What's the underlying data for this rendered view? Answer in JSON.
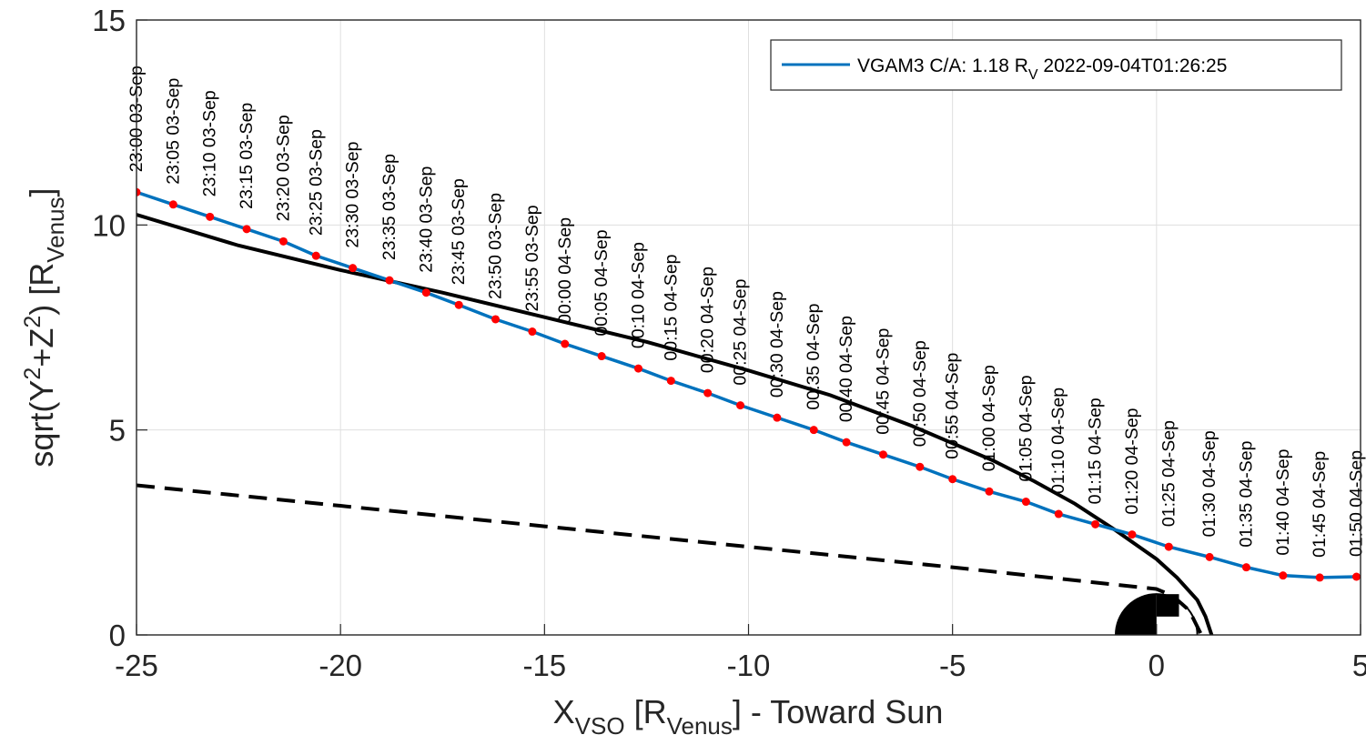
{
  "chart_data": {
    "type": "line",
    "xlabel": {
      "main": "X",
      "sub1": "VSO",
      "mid": " [R",
      "sub2": "Venus",
      "end": "] - Toward Sun"
    },
    "ylabel": {
      "main": "sqrt(Y",
      "sup1": "2",
      "mid": "+Z",
      "sup2": "2",
      "mid2": ") [R",
      "sub": "Venus",
      "end": "]"
    },
    "xlim": [
      -25,
      5
    ],
    "ylim": [
      0,
      15
    ],
    "x_ticks": [
      -25,
      -20,
      -15,
      -10,
      -5,
      0,
      5
    ],
    "y_ticks": [
      0,
      5,
      10,
      15
    ],
    "grid": true,
    "legend_position": "top-right",
    "colors": {
      "trajectory": "#0072BD",
      "markers": "#ff0000",
      "boundaries": "#000000"
    },
    "series": [
      {
        "name": "VGAM3 C/A: 1.18 R",
        "name_sub": "V",
        "name_suffix": " 2022-09-04T01:26:25",
        "x": [
          -25.0,
          -24.1,
          -23.2,
          -22.3,
          -21.4,
          -20.6,
          -19.7,
          -18.8,
          -17.9,
          -17.1,
          -16.2,
          -15.3,
          -14.5,
          -13.6,
          -12.7,
          -11.9,
          -11.0,
          -10.2,
          -9.3,
          -8.4,
          -7.6,
          -6.7,
          -5.8,
          -5.0,
          -4.1,
          -3.2,
          -2.4,
          -1.5,
          -0.6,
          0.3,
          1.3,
          2.2,
          3.1,
          4.0,
          4.9
        ],
        "y": [
          10.8,
          10.5,
          10.2,
          9.9,
          9.6,
          9.25,
          8.95,
          8.65,
          8.35,
          8.05,
          7.7,
          7.4,
          7.1,
          6.8,
          6.5,
          6.2,
          5.9,
          5.6,
          5.3,
          5.0,
          4.7,
          4.4,
          4.1,
          3.8,
          3.5,
          3.25,
          2.95,
          2.7,
          2.45,
          2.15,
          1.9,
          1.65,
          1.45,
          1.4,
          1.42
        ],
        "markers_x": [
          -25.0,
          -24.1,
          -23.2,
          -22.3,
          -21.4,
          -20.6,
          -19.7,
          -18.8,
          -17.9,
          -17.1,
          -16.2,
          -15.3,
          -14.5,
          -13.6,
          -12.7,
          -11.9,
          -11.0,
          -10.2,
          -9.3,
          -8.4,
          -7.6,
          -6.7,
          -5.8,
          -5.0,
          -4.1,
          -3.2,
          -2.4,
          -1.5,
          -0.6,
          0.3,
          1.3,
          2.2,
          3.1,
          4.0,
          4.9
        ],
        "markers_y": [
          10.8,
          10.5,
          10.2,
          9.9,
          9.6,
          9.25,
          8.95,
          8.65,
          8.35,
          8.05,
          7.7,
          7.4,
          7.1,
          6.8,
          6.5,
          6.2,
          5.9,
          5.6,
          5.3,
          5.0,
          4.7,
          4.4,
          4.1,
          3.8,
          3.5,
          3.25,
          2.95,
          2.7,
          2.45,
          2.15,
          1.9,
          1.65,
          1.45,
          1.4,
          1.42
        ]
      },
      {
        "x": [
          -25.0,
          -22.5,
          -20.0,
          -17.5,
          -15.0,
          -12.5,
          -10.0,
          -8.0,
          -6.0,
          -4.0,
          -3.0,
          -2.0,
          -1.0,
          -0.5,
          0.0,
          0.5,
          1.0,
          1.2,
          1.35
        ],
        "y": [
          10.25,
          9.5,
          8.9,
          8.35,
          7.75,
          7.15,
          6.45,
          5.85,
          5.1,
          4.25,
          3.75,
          3.2,
          2.55,
          2.2,
          1.85,
          1.4,
          0.85,
          0.45,
          0.0
        ]
      },
      {
        "x": [
          -25.0,
          -20.0,
          -15.0,
          -10.0,
          -5.0,
          0.0,
          0.4,
          0.8,
          1.1
        ],
        "y": [
          3.65,
          3.15,
          2.65,
          2.15,
          1.65,
          1.12,
          0.95,
          0.6,
          0.0
        ]
      }
    ],
    "time_labels": [
      "23:00 03-Sep",
      "23:05 03-Sep",
      "23:10 03-Sep",
      "23:15 03-Sep",
      "23:20 03-Sep",
      "23:25 03-Sep",
      "23:30 03-Sep",
      "23:35 03-Sep",
      "23:40 03-Sep",
      "23:45 03-Sep",
      "23:50 03-Sep",
      "23:55 03-Sep",
      "00:00 04-Sep",
      "00:05 04-Sep",
      "00:10 04-Sep",
      "00:15 04-Sep",
      "00:20 04-Sep",
      "00:25 04-Sep",
      "00:30 04-Sep",
      "00:35 04-Sep",
      "00:40 04-Sep",
      "00:45 04-Sep",
      "00:50 04-Sep",
      "00:55 04-Sep",
      "01:00 04-Sep",
      "01:05 04-Sep",
      "01:10 04-Sep",
      "01:15 04-Sep",
      "01:20 04-Sep",
      "01:25 04-Sep",
      "01:30 04-Sep",
      "01:35 04-Sep",
      "01:40 04-Sep",
      "01:45 04-Sep",
      "01:50 04-Sep"
    ],
    "planet": {
      "x": 0,
      "y": 0,
      "radius": 1
    }
  }
}
